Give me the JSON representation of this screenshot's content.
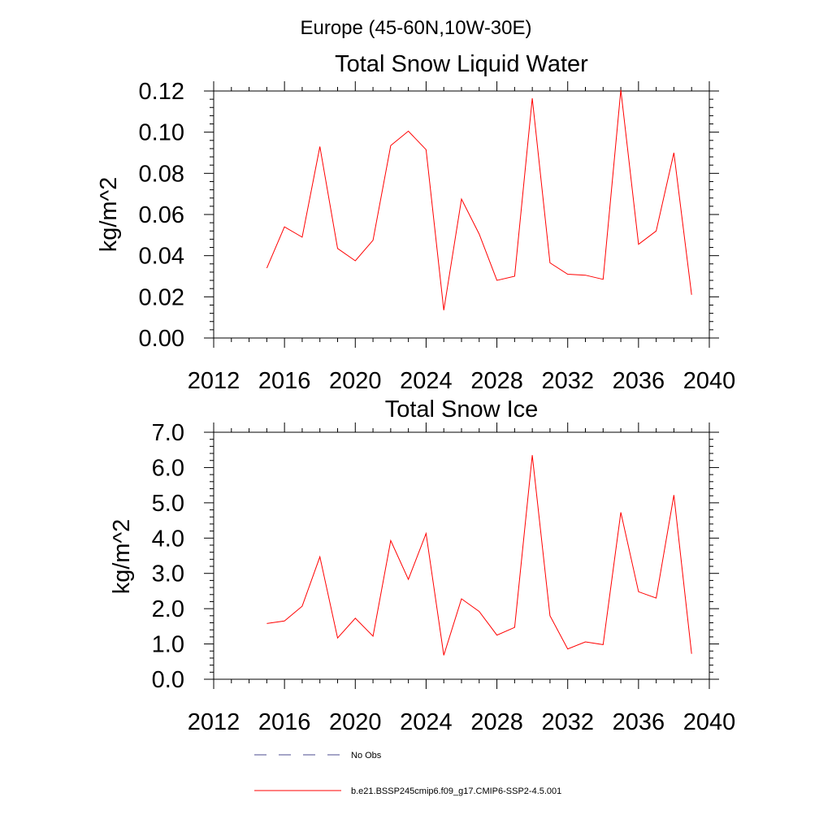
{
  "figure_title": "Europe (45-60N,10W-30E)",
  "legend": {
    "entries": [
      {
        "label": "No Obs",
        "color": "#4b4b8f",
        "style": "dashed"
      },
      {
        "label": "b.e21.BSSP245cmip6.f09_g17.CMIP6-SSP2-4.5.001",
        "color": "#ff0000",
        "style": "solid"
      }
    ]
  },
  "chart_data": [
    {
      "type": "line",
      "title": "Total Snow Liquid Water",
      "ylabel": "kg/m^2",
      "xlabel": "",
      "xlim": [
        2012,
        2040
      ],
      "ylim": [
        0.0,
        0.12
      ],
      "xticks": [
        2012,
        2016,
        2020,
        2024,
        2028,
        2032,
        2036,
        2040
      ],
      "xtick_labels": [
        "2012",
        "2016",
        "2020",
        "2024",
        "2028",
        "2032",
        "2036",
        "2040"
      ],
      "yticks": [
        0.0,
        0.02,
        0.04,
        0.06,
        0.08,
        0.1,
        0.12
      ],
      "ytick_labels": [
        "0.00",
        "0.02",
        "0.04",
        "0.06",
        "0.08",
        "0.10",
        "0.12"
      ],
      "series": [
        {
          "name": "b.e21.BSSP245cmip6.f09_g17.CMIP6-SSP2-4.5.001",
          "color": "#ff0000",
          "x": [
            2015,
            2016,
            2017,
            2018,
            2019,
            2020,
            2021,
            2022,
            2023,
            2024,
            2025,
            2026,
            2027,
            2028,
            2029,
            2030,
            2031,
            2032,
            2033,
            2034,
            2035,
            2036,
            2037,
            2038,
            2039
          ],
          "y": [
            0.034,
            0.054,
            0.049,
            0.093,
            0.0435,
            0.0375,
            0.0475,
            0.0935,
            0.1005,
            0.0915,
            0.0135,
            0.0675,
            0.0505,
            0.028,
            0.03,
            0.1165,
            0.0365,
            0.031,
            0.0305,
            0.0285,
            0.1205,
            0.0455,
            0.052,
            0.09,
            0.021
          ]
        }
      ]
    },
    {
      "type": "line",
      "title": "Total Snow Ice",
      "ylabel": "kg/m^2",
      "xlabel": "",
      "xlim": [
        2012,
        2040
      ],
      "ylim": [
        0.0,
        7.0
      ],
      "xticks": [
        2012,
        2016,
        2020,
        2024,
        2028,
        2032,
        2036,
        2040
      ],
      "xtick_labels": [
        "2012",
        "2016",
        "2020",
        "2024",
        "2028",
        "2032",
        "2036",
        "2040"
      ],
      "yticks": [
        0.0,
        1.0,
        2.0,
        3.0,
        4.0,
        5.0,
        6.0,
        7.0
      ],
      "ytick_labels": [
        "0.0",
        "1.0",
        "2.0",
        "3.0",
        "4.0",
        "5.0",
        "6.0",
        "7.0"
      ],
      "series": [
        {
          "name": "b.e21.BSSP245cmip6.f09_g17.CMIP6-SSP2-4.5.001",
          "color": "#ff0000",
          "x": [
            2015,
            2016,
            2017,
            2018,
            2019,
            2020,
            2021,
            2022,
            2023,
            2024,
            2025,
            2026,
            2027,
            2028,
            2029,
            2030,
            2031,
            2032,
            2033,
            2034,
            2035,
            2036,
            2037,
            2038,
            2039
          ],
          "y": [
            1.58,
            1.65,
            2.07,
            3.47,
            1.17,
            1.73,
            1.22,
            3.93,
            2.83,
            4.13,
            0.68,
            2.28,
            1.92,
            1.25,
            1.47,
            6.35,
            1.8,
            0.86,
            1.06,
            0.98,
            4.73,
            2.48,
            2.3,
            5.22,
            0.72
          ]
        }
      ]
    }
  ]
}
